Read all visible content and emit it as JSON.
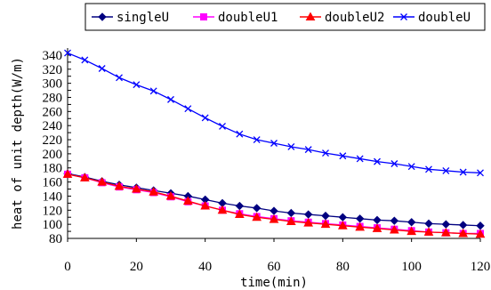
{
  "chart_data": {
    "type": "line",
    "xlabel": "time(min)",
    "ylabel": "heat of unit depth(W/m)",
    "xlim": [
      0,
      120
    ],
    "ylim": [
      80,
      350
    ],
    "x_ticks": [
      0,
      20,
      40,
      60,
      80,
      100,
      120
    ],
    "y_ticks": [
      80,
      90,
      100,
      110,
      120,
      130,
      140,
      150,
      160,
      170,
      180,
      190,
      200,
      210,
      220,
      230,
      240,
      250,
      260,
      270,
      280,
      290,
      300,
      310,
      320,
      330,
      340
    ],
    "y_tick_labels_shown": [
      80,
      100,
      120,
      140,
      160,
      180,
      200,
      220,
      240,
      260,
      280,
      300,
      320,
      340
    ],
    "grid": false,
    "legend_position": "top",
    "x": [
      0,
      5,
      10,
      15,
      20,
      25,
      30,
      35,
      40,
      45,
      50,
      55,
      60,
      65,
      70,
      75,
      80,
      85,
      90,
      95,
      100,
      105,
      110,
      115,
      120
    ],
    "series": [
      {
        "name": "singleU",
        "color": "#000080",
        "marker": "diamond",
        "values": [
          172,
          167,
          161,
          156,
          152,
          148,
          144,
          140,
          135,
          130,
          126,
          123,
          119,
          116,
          114,
          112,
          110,
          108,
          106,
          105,
          103,
          101,
          100,
          99,
          98
        ]
      },
      {
        "name": "doubleU1",
        "color": "#ff00ff",
        "marker": "square",
        "values": [
          171,
          166,
          159,
          153,
          149,
          145,
          139,
          132,
          126,
          120,
          115,
          111,
          108,
          105,
          103,
          101,
          99,
          97,
          95,
          93,
          91,
          89,
          88,
          87,
          87
        ]
      },
      {
        "name": "doubleU2",
        "color": "#ff0000",
        "marker": "triangle",
        "values": [
          171,
          166,
          160,
          154,
          150,
          146,
          140,
          133,
          126,
          120,
          114,
          110,
          107,
          104,
          102,
          100,
          98,
          96,
          94,
          92,
          90,
          89,
          88,
          87,
          86
        ]
      },
      {
        "name": "doubleU",
        "color": "#0000ff",
        "marker": "x",
        "values": [
          343,
          333,
          321,
          308,
          298,
          289,
          277,
          264,
          251,
          239,
          228,
          220,
          215,
          210,
          206,
          201,
          197,
          193,
          189,
          186,
          182,
          178,
          176,
          174,
          173
        ]
      }
    ]
  }
}
